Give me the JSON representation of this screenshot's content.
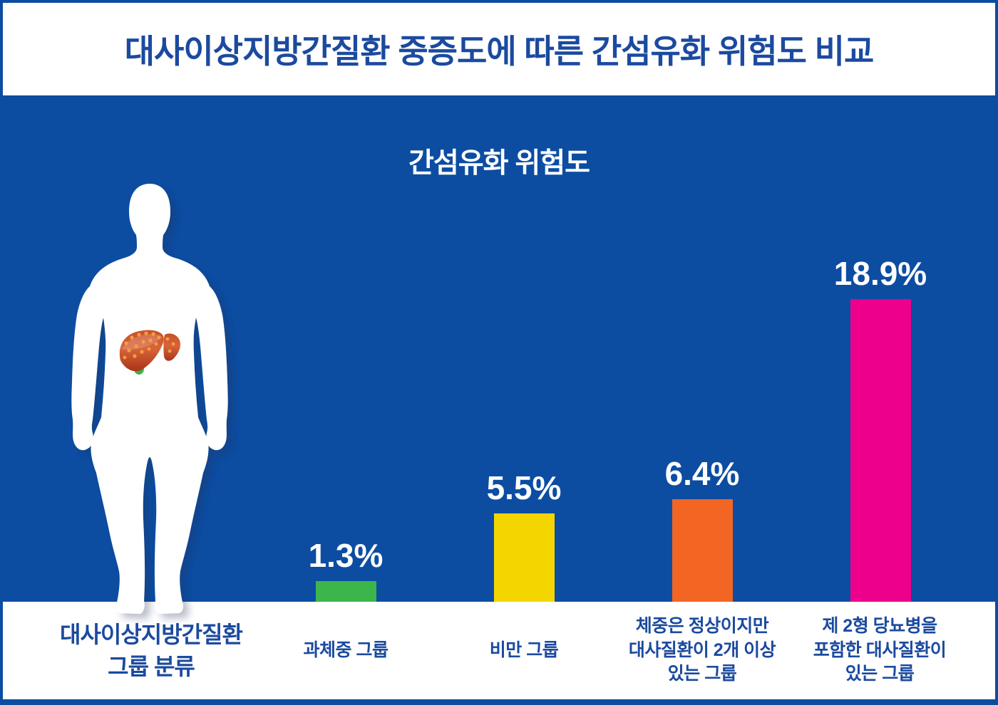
{
  "header": {
    "title": "대사이상지방간질환 중증도에 따른  간섬유화 위험도 비교"
  },
  "subtitle": "간섬유화 위험도",
  "group_axis_title": "대사이상지방간질환\n그룹 분류",
  "chart_data": {
    "type": "bar",
    "title": "간섬유화 위험도",
    "xlabel": "대사이상지방간질환 그룹 분류",
    "ylabel": "간섬유화 위험도 (%)",
    "categories": [
      "과체중 그룹",
      "비만 그룹",
      "체중은 정상이지만\n대사질환이 2개 이상\n있는 그룹",
      "제 2형 당뇨병을\n포함한 대사질환이\n있는 그룹"
    ],
    "values": [
      1.3,
      5.5,
      6.4,
      18.9
    ],
    "value_labels": [
      "1.3%",
      "5.5%",
      "6.4%",
      "18.9%"
    ],
    "colors": [
      "#3CB54A",
      "#F4D500",
      "#F26522",
      "#EC008C"
    ],
    "ylim": [
      0,
      20
    ],
    "unit": "%",
    "grid": false,
    "legend": "none"
  },
  "colors": {
    "background_blue": "#0C4DA2",
    "text_blue": "#1B4A9F",
    "bar_green": "#3CB54A",
    "bar_yellow": "#F4D500",
    "bar_orange": "#F26522",
    "bar_pink": "#EC008C",
    "white": "#FFFFFF"
  },
  "icons": {
    "body": "human-body-silhouette",
    "liver": "fatty-liver-icon"
  }
}
